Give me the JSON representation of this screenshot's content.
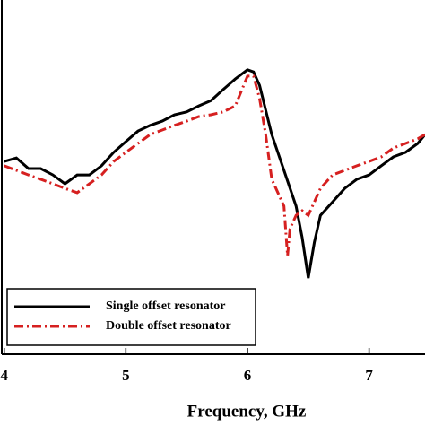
{
  "chart_data": {
    "type": "line",
    "x_label": "Frequency, GHz",
    "xlim": [
      3.98,
      7.46
    ],
    "xticks": [
      4,
      5,
      6,
      7
    ],
    "ylim": [
      0,
      100
    ],
    "legend": "lower left",
    "series": [
      {
        "name": "Single offset resonator",
        "color": "#000000",
        "dash": "solid",
        "x": [
          4.0,
          4.1,
          4.2,
          4.3,
          4.4,
          4.5,
          4.6,
          4.7,
          4.8,
          4.9,
          5.0,
          5.1,
          5.2,
          5.3,
          5.4,
          5.5,
          5.6,
          5.7,
          5.8,
          5.9,
          6.0,
          6.05,
          6.1,
          6.2,
          6.3,
          6.4,
          6.45,
          6.5,
          6.55,
          6.6,
          6.7,
          6.8,
          6.9,
          7.0,
          7.1,
          7.2,
          7.3,
          7.4,
          7.46
        ],
        "values": [
          54.4,
          55.4,
          52.4,
          52.4,
          50.6,
          48.1,
          50.6,
          50.6,
          53.2,
          57.0,
          60.0,
          63.0,
          64.6,
          65.8,
          67.6,
          68.4,
          70.1,
          71.6,
          74.7,
          77.7,
          80.3,
          79.7,
          75.9,
          62.0,
          51.9,
          41.8,
          32.9,
          21.5,
          31.6,
          39.2,
          43.0,
          46.8,
          49.4,
          50.6,
          53.2,
          55.7,
          57.0,
          59.5,
          62.0
        ]
      },
      {
        "name": "Double offset resonator",
        "color": "#d62020",
        "dash": "dashdot",
        "x": [
          4.0,
          4.1,
          4.2,
          4.3,
          4.4,
          4.5,
          4.6,
          4.7,
          4.8,
          4.9,
          5.0,
          5.1,
          5.2,
          5.3,
          5.4,
          5.5,
          5.6,
          5.7,
          5.8,
          5.9,
          6.0,
          6.05,
          6.1,
          6.15,
          6.2,
          6.25,
          6.3,
          6.33,
          6.35,
          6.4,
          6.45,
          6.5,
          6.55,
          6.6,
          6.7,
          6.8,
          6.9,
          7.0,
          7.1,
          7.2,
          7.3,
          7.4,
          7.46
        ],
        "values": [
          53.2,
          51.9,
          50.6,
          49.4,
          48.1,
          46.8,
          45.6,
          48.1,
          50.6,
          54.4,
          57.0,
          59.5,
          62.0,
          63.3,
          64.6,
          65.8,
          67.1,
          67.6,
          68.4,
          70.1,
          78.5,
          78.5,
          72.2,
          62.0,
          49.4,
          45.6,
          41.8,
          27.8,
          35.4,
          39.2,
          40.5,
          39.2,
          43.0,
          46.8,
          50.6,
          51.9,
          53.2,
          54.4,
          55.7,
          58.2,
          59.5,
          60.8,
          62.0
        ]
      }
    ]
  }
}
